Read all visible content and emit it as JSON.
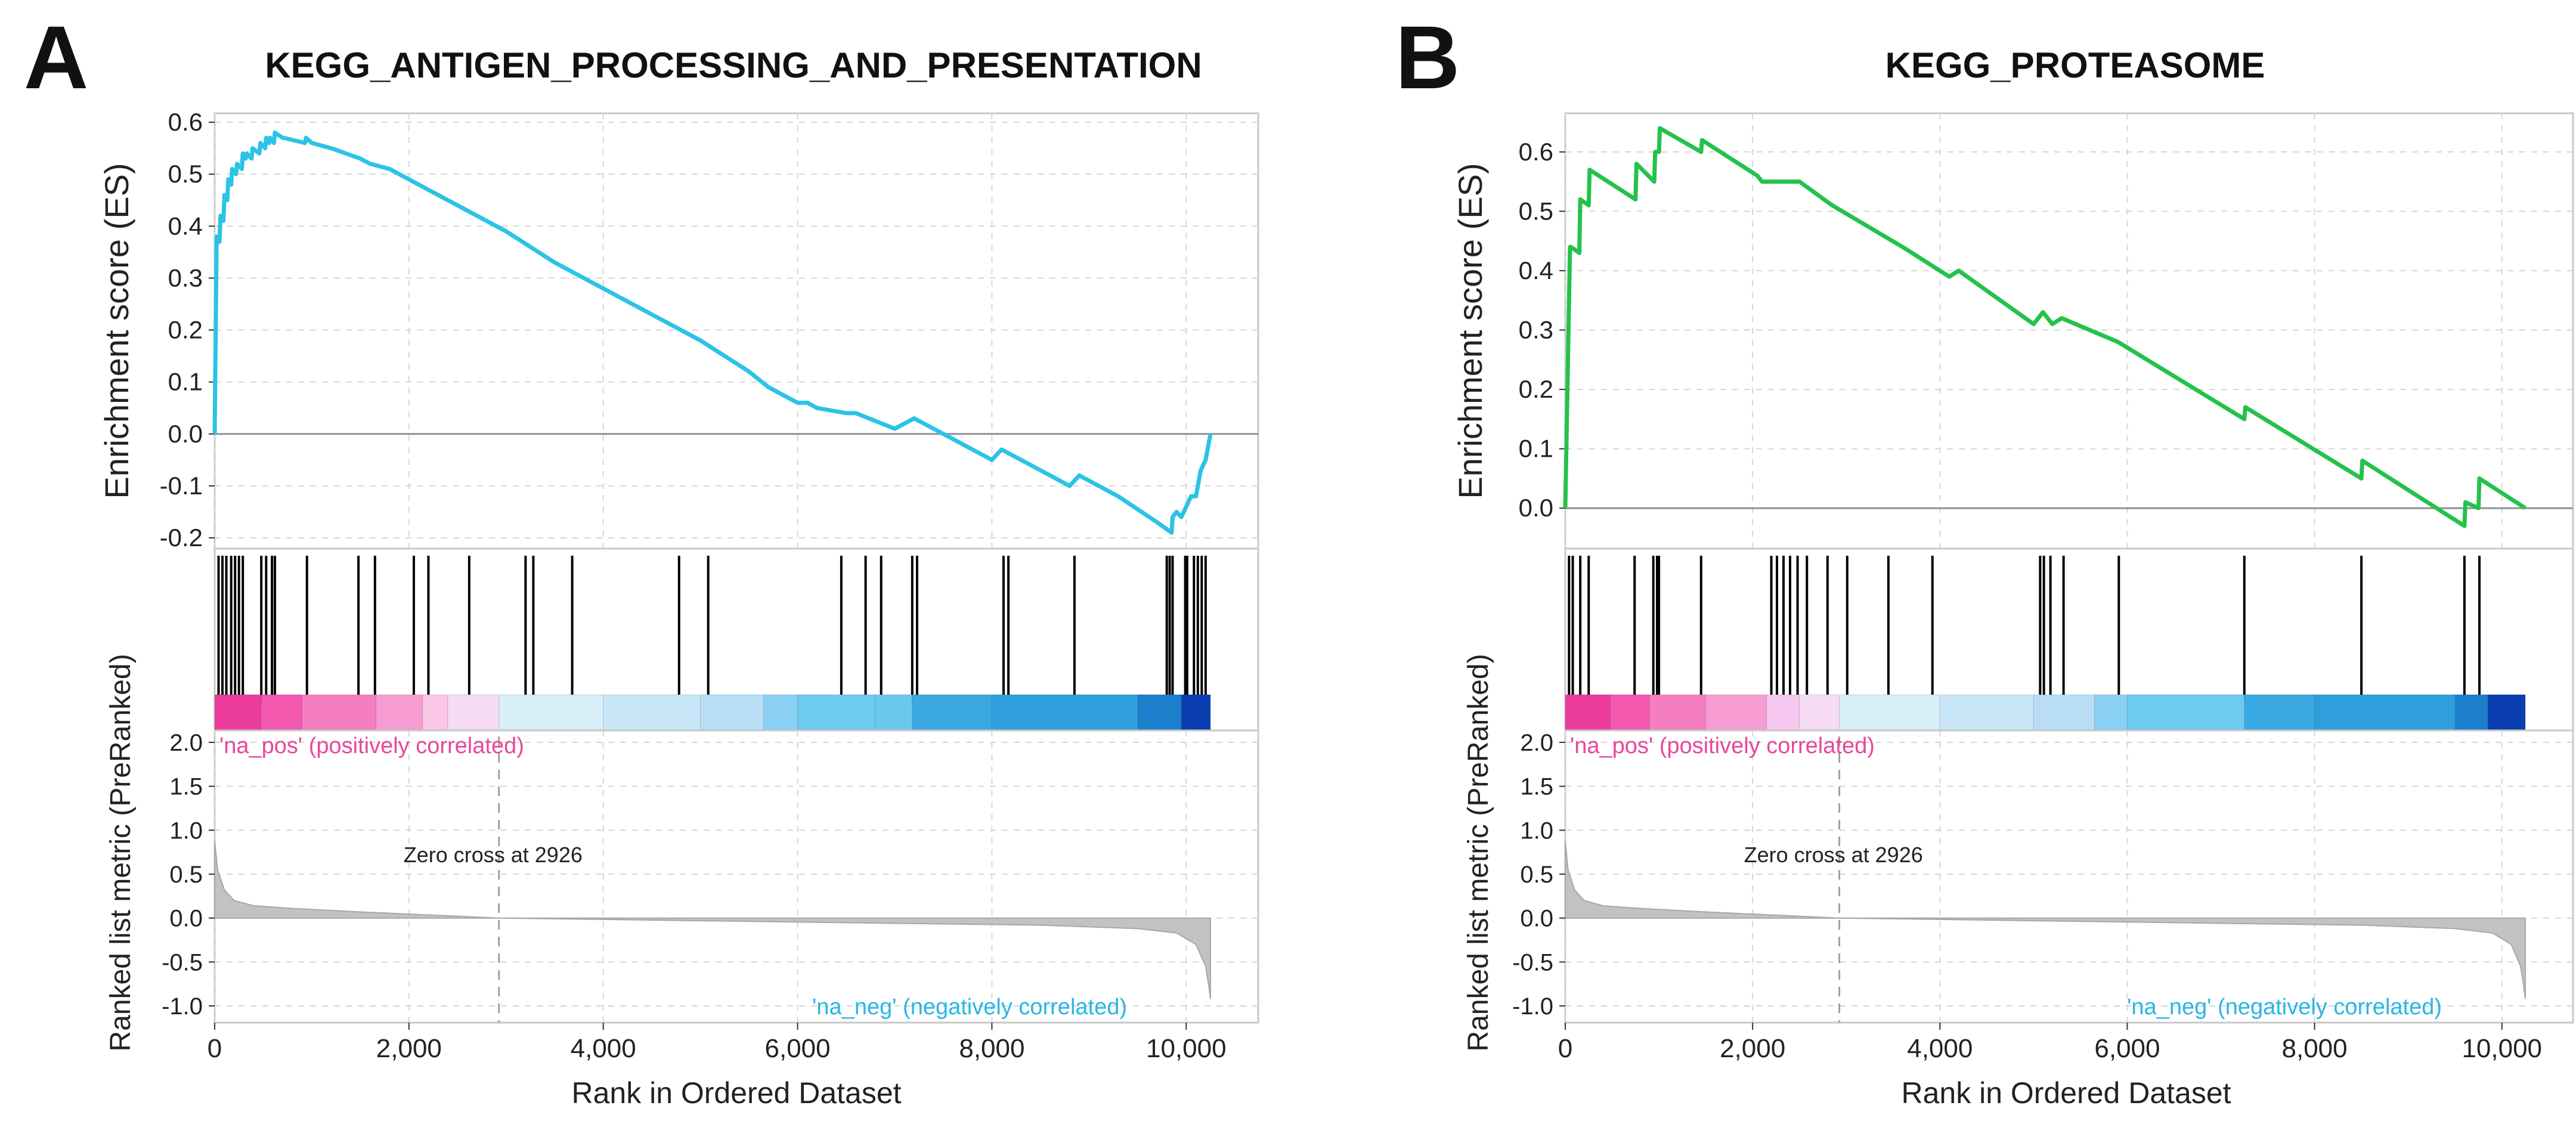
{
  "chart_data": [
    {
      "panel_label": "A",
      "title": "KEGG_ANTIGEN_PROCESSING_AND_PRESENTATION",
      "type": "line",
      "color": "#2bc3e6",
      "x_max": 10250,
      "xlabel": "Rank in Ordered Dataset",
      "x_ticks": [
        0,
        2000,
        4000,
        6000,
        8000,
        10000
      ],
      "x_tick_labels": [
        "0",
        "2,000",
        "4,000",
        "6,000",
        "8,000",
        "10,000"
      ],
      "es": {
        "ylabel": "Enrichment score (ES)",
        "ylim": [
          -0.2,
          0.6
        ],
        "y_ticks": [
          -0.2,
          -0.1,
          0.0,
          0.1,
          0.2,
          0.3,
          0.4,
          0.5,
          0.6
        ],
        "y_tick_labels": [
          "-0.2",
          "-0.1",
          "0.0",
          "0.1",
          "0.2",
          "0.3",
          "0.4",
          "0.5",
          "0.6"
        ],
        "x": [
          0,
          20,
          50,
          60,
          90,
          100,
          130,
          140,
          170,
          180,
          220,
          230,
          280,
          290,
          320,
          330,
          380,
          390,
          460,
          470,
          520,
          530,
          560,
          570,
          610,
          620,
          700,
          710,
          930,
          940,
          1000,
          1200,
          1500,
          1600,
          1800,
          2000,
          2200,
          2600,
          3000,
          3500,
          4000,
          4500,
          5000,
          5500,
          5700,
          6000,
          6100,
          6200,
          6500,
          6600,
          7000,
          7200,
          7300,
          7500,
          8000,
          8100,
          8500,
          8800,
          8900,
          9300,
          9700,
          9850,
          9860,
          9900,
          9950,
          10050,
          10100,
          10150,
          10200,
          10250
        ],
        "y": [
          0.0,
          0.38,
          0.37,
          0.42,
          0.41,
          0.46,
          0.45,
          0.49,
          0.48,
          0.51,
          0.5,
          0.52,
          0.51,
          0.54,
          0.53,
          0.54,
          0.53,
          0.55,
          0.54,
          0.56,
          0.55,
          0.57,
          0.56,
          0.57,
          0.56,
          0.58,
          0.57,
          0.57,
          0.56,
          0.57,
          0.56,
          0.55,
          0.53,
          0.52,
          0.51,
          0.49,
          0.47,
          0.43,
          0.39,
          0.33,
          0.28,
          0.23,
          0.18,
          0.12,
          0.09,
          0.06,
          0.06,
          0.05,
          0.04,
          0.04,
          0.01,
          0.03,
          0.02,
          0.0,
          -0.05,
          -0.03,
          -0.07,
          -0.1,
          -0.08,
          -0.12,
          -0.17,
          -0.19,
          -0.16,
          -0.15,
          -0.16,
          -0.12,
          -0.12,
          -0.07,
          -0.05,
          0.0
        ]
      },
      "hits": [
        40,
        80,
        120,
        170,
        210,
        250,
        290,
        480,
        530,
        590,
        620,
        950,
        1480,
        1650,
        2050,
        2200,
        2620,
        3200,
        3280,
        3680,
        4780,
        5080,
        6450,
        6700,
        6860,
        7180,
        7230,
        8120,
        8170,
        8850,
        9800,
        9830,
        9860,
        9990,
        10010,
        10080,
        10120,
        10160,
        10200
      ],
      "color_bar": {
        "boundaries": [
          0,
          480,
          900,
          1660,
          2140,
          2400,
          2926,
          4000,
          5000,
          5650,
          6000,
          6800,
          7180,
          8000,
          9500,
          9950,
          10250
        ],
        "colors": [
          "#ec3c9c",
          "#f158ae",
          "#f47ec0",
          "#f79cd0",
          "#f9c6e6",
          "#f5dcf3",
          "#d8eef9",
          "#c8e6f7",
          "#b8ddf5",
          "#8ad0f2",
          "#6ecaf0",
          "#6ac8ef",
          "#3aa8e1",
          "#2f9fdc",
          "#1c7fcc",
          "#0b3eb0"
        ]
      },
      "metric": {
        "ylabel": "Ranked list metric (PreRanked)",
        "ylim": [
          -1.0,
          2.0
        ],
        "y_ticks": [
          -1.0,
          -0.5,
          0.0,
          0.5,
          1.0,
          1.5,
          2.0
        ],
        "y_tick_labels": [
          "-1.0",
          "-0.5",
          "0.0",
          "0.5",
          "1.0",
          "1.5",
          "2.0"
        ],
        "x": [
          0,
          30,
          100,
          200,
          400,
          800,
          1500,
          2926,
          5000,
          7000,
          8500,
          9500,
          9900,
          10100,
          10200,
          10230,
          10250
        ],
        "y": [
          0.88,
          0.55,
          0.32,
          0.2,
          0.14,
          0.11,
          0.07,
          0.0,
          -0.03,
          -0.06,
          -0.08,
          -0.12,
          -0.17,
          -0.3,
          -0.55,
          -0.75,
          -0.92
        ],
        "zero_cross_rank": 2926,
        "zero_cross_label": "Zero cross at 2926",
        "pos_label": "'na_pos' (positively correlated)",
        "neg_label": "'na_neg' (negatively correlated)",
        "pos_color": "#e8479b",
        "neg_color": "#29b6e3"
      }
    },
    {
      "panel_label": "B",
      "title": "KEGG_PROTEASOME",
      "type": "line",
      "color": "#24c24b",
      "x_max": 10250,
      "xlabel": "Rank in Ordered Dataset",
      "x_ticks": [
        0,
        2000,
        4000,
        6000,
        8000,
        10000
      ],
      "x_tick_labels": [
        "0",
        "2,000",
        "4,000",
        "6,000",
        "8,000",
        "10,000"
      ],
      "es": {
        "ylabel": "Enrichment score (ES)",
        "ylim": [
          -0.05,
          0.65
        ],
        "y_ticks": [
          0.0,
          0.1,
          0.2,
          0.3,
          0.4,
          0.5,
          0.6
        ],
        "y_tick_labels": [
          "0.0",
          "0.1",
          "0.2",
          "0.3",
          "0.4",
          "0.5",
          "0.6"
        ],
        "x": [
          0,
          50,
          60,
          150,
          160,
          250,
          260,
          750,
          760,
          950,
          960,
          1000,
          1010,
          1450,
          1460,
          2050,
          2100,
          2250,
          2400,
          2500,
          2850,
          3600,
          4100,
          4200,
          5000,
          5100,
          5200,
          5300,
          5900,
          7250,
          7260,
          8500,
          8510,
          9600,
          9610,
          9750,
          9760,
          10250
        ],
        "y": [
          0.0,
          0.44,
          0.44,
          0.43,
          0.52,
          0.51,
          0.57,
          0.52,
          0.58,
          0.55,
          0.6,
          0.6,
          0.64,
          0.6,
          0.62,
          0.56,
          0.55,
          0.55,
          0.55,
          0.55,
          0.51,
          0.44,
          0.39,
          0.4,
          0.31,
          0.33,
          0.31,
          0.32,
          0.28,
          0.15,
          0.17,
          0.05,
          0.08,
          -0.03,
          0.01,
          0.0,
          0.05,
          0.0
        ]
      },
      "hits": [
        40,
        80,
        160,
        250,
        740,
        940,
        980,
        1000,
        1450,
        2200,
        2260,
        2330,
        2400,
        2480,
        2580,
        2800,
        3010,
        3450,
        3920,
        5070,
        5110,
        5180,
        5320,
        5910,
        7250,
        8500,
        9600,
        9760
      ],
      "color_bar": {
        "boundaries": [
          0,
          480,
          900,
          1500,
          2150,
          2500,
          2926,
          4000,
          5000,
          5650,
          6000,
          7250,
          8000,
          9500,
          9850,
          10250
        ],
        "colors": [
          "#ec3c9c",
          "#f158ae",
          "#f47ec0",
          "#f79cd0",
          "#f6c8ef",
          "#f5dcf3",
          "#d8eef9",
          "#c8e6f7",
          "#b8ddf5",
          "#8ad0f2",
          "#6ecaf0",
          "#3aa8e1",
          "#2f9fdc",
          "#1c7fcc",
          "#0b3eb0"
        ]
      },
      "metric": {
        "ylabel": "Ranked list metric (PreRanked)",
        "ylim": [
          -1.0,
          2.0
        ],
        "y_ticks": [
          -1.0,
          -0.5,
          0.0,
          0.5,
          1.0,
          1.5,
          2.0
        ],
        "y_tick_labels": [
          "-1.0",
          "-0.5",
          "0.0",
          "0.5",
          "1.0",
          "1.5",
          "2.0"
        ],
        "x": [
          0,
          30,
          100,
          200,
          400,
          800,
          1500,
          2926,
          5000,
          7000,
          8500,
          9500,
          9900,
          10100,
          10200,
          10230,
          10250
        ],
        "y": [
          0.88,
          0.55,
          0.32,
          0.2,
          0.14,
          0.11,
          0.07,
          0.0,
          -0.03,
          -0.06,
          -0.08,
          -0.12,
          -0.17,
          -0.3,
          -0.55,
          -0.75,
          -0.92
        ],
        "zero_cross_rank": 2926,
        "zero_cross_label": "Zero cross at 2926",
        "pos_label": "'na_pos' (positively correlated)",
        "neg_label": "'na_neg' (negatively correlated)",
        "pos_color": "#e8479b",
        "neg_color": "#29b6e3"
      }
    }
  ]
}
